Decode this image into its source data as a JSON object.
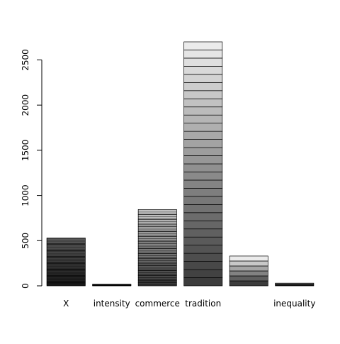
{
  "chart_data": {
    "type": "bar",
    "stacked": true,
    "categories": [
      "X",
      "intensity",
      "commerce",
      "tradition",
      "",
      "inequality"
    ],
    "totals": [
      530,
      18,
      845,
      2700,
      330,
      30
    ],
    "segment_counts": [
      60,
      5,
      45,
      30,
      6,
      4
    ],
    "fill_gradient": "segments shaded from dark gray at the bottom to light gray at the top, thin black borders",
    "yticks": [
      0,
      500,
      1000,
      1500,
      2000,
      2500
    ],
    "ylim": [
      0,
      2700
    ],
    "grid": false,
    "legend": "none",
    "title": "",
    "xlabel": "",
    "ylabel": ""
  }
}
